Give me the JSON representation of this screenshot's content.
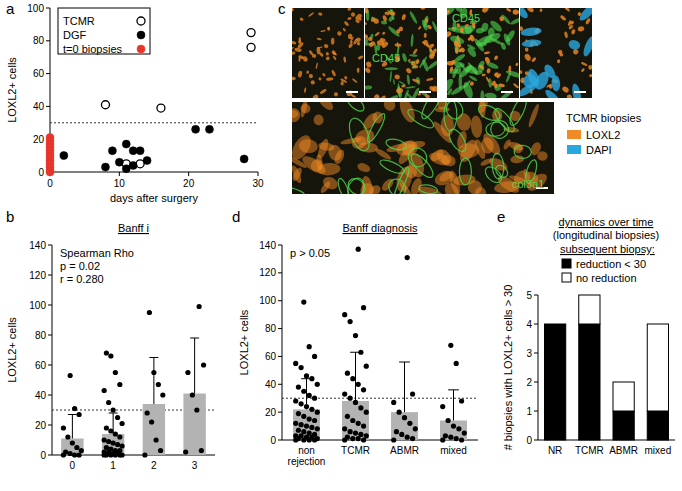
{
  "chart_data": [
    {
      "panel_label": "a",
      "type": "scatter",
      "x_label": "days after surgery",
      "y_label": "LOXL2+ cells",
      "xlim": [
        0,
        30
      ],
      "xticks": [
        0,
        10,
        20,
        30
      ],
      "ylim": [
        0,
        100
      ],
      "yticks": [
        0,
        20,
        40,
        60,
        80,
        100
      ],
      "threshold": 30,
      "legend": "top-left",
      "series": [
        {
          "name": "TCMR",
          "color": "#000000",
          "marker": "open",
          "x": [
            8,
            11,
            13,
            16,
            29,
            29
          ],
          "values": [
            41,
            5,
            5,
            39,
            85,
            76
          ]
        },
        {
          "name": "DGF",
          "color": "#000000",
          "marker": "filled",
          "x": [
            2,
            8,
            9,
            10,
            11,
            11,
            12,
            12,
            13,
            14,
            21,
            23,
            28
          ],
          "values": [
            10,
            3,
            13,
            6,
            17,
            2,
            13,
            4,
            13,
            7,
            26,
            26,
            8
          ]
        },
        {
          "name": "t=0 biopsies",
          "color": "#e8352b",
          "marker": "filled",
          "x": [
            0,
            0,
            0,
            0,
            0,
            0,
            0,
            0,
            0,
            0,
            0,
            0
          ],
          "values": [
            0,
            1,
            3,
            5,
            7,
            9,
            11,
            13,
            15,
            17,
            19,
            21
          ]
        }
      ]
    },
    {
      "panel_label": "b",
      "type": "bar",
      "title": "Banff i",
      "annotations": [
        "Spearman Rho",
        "p = 0.02",
        "r = 0.280"
      ],
      "y_label": "LOXL2+ cells",
      "categories": [
        "0",
        "1",
        "2",
        "3"
      ],
      "values": [
        11,
        14,
        34,
        41
      ],
      "errors": [
        16,
        14,
        31,
        37
      ],
      "points": [
        [
          0,
          0,
          0,
          1,
          2,
          3,
          5,
          8,
          12,
          18,
          27,
          31,
          53
        ],
        [
          0,
          0,
          0,
          0,
          0,
          0,
          1,
          1,
          2,
          2,
          3,
          3,
          4,
          5,
          6,
          7,
          8,
          9,
          10,
          12,
          14,
          16,
          18,
          21,
          25,
          30,
          35,
          43,
          47,
          55,
          66,
          68
        ],
        [
          0,
          3,
          10,
          22,
          28,
          40,
          47,
          55,
          95
        ],
        [
          2,
          3,
          30,
          40,
          55,
          60,
          99
        ]
      ],
      "color": "#b3b3b3",
      "ylim": [
        0,
        140
      ],
      "yticks": [
        0,
        20,
        40,
        60,
        80,
        100,
        120,
        140
      ],
      "threshold": 30
    },
    {
      "panel_label": "d",
      "type": "bar",
      "title": "Banff diagnosis",
      "annotations": [
        "p > 0.05"
      ],
      "y_label": "LOXL2+ cells",
      "categories": [
        "non rejection",
        "TCMR",
        "ABMR",
        "mixed"
      ],
      "values": [
        22,
        28,
        20,
        14
      ],
      "errors": [
        22,
        35,
        36,
        22
      ],
      "points": [
        [
          0,
          0,
          0,
          0,
          1,
          1,
          2,
          2,
          3,
          3,
          4,
          5,
          6,
          7,
          8,
          9,
          10,
          11,
          12,
          14,
          15,
          17,
          19,
          20,
          22,
          24,
          26,
          28,
          30,
          32,
          35,
          38,
          40,
          44,
          46,
          52,
          55,
          60,
          67,
          99
        ],
        [
          0,
          0,
          1,
          1,
          2,
          3,
          4,
          5,
          6,
          8,
          10,
          12,
          14,
          17,
          20,
          23,
          27,
          30,
          33,
          36,
          40,
          44,
          48,
          53,
          63,
          75,
          85,
          90,
          95,
          137
        ],
        [
          0,
          1,
          2,
          4,
          6,
          8,
          12,
          16,
          20,
          27,
          33,
          131
        ],
        [
          0,
          0,
          1,
          2,
          3,
          5,
          8,
          10,
          14,
          24,
          28,
          55,
          68
        ]
      ],
      "color": "#b3b3b3",
      "ylim": [
        0,
        140
      ],
      "yticks": [
        0,
        20,
        40,
        60,
        80,
        100,
        120,
        140
      ],
      "threshold": 30
    },
    {
      "panel_label": "e",
      "type": "bar",
      "stacked": true,
      "title": "dynamics over time",
      "subtitle": "(longitudinal biopsies)",
      "legend_title": "subsequent biopsy:",
      "legend": "top",
      "y_label": "# biopsies with LOXL2+ cells > 30",
      "categories": [
        "NR",
        "TCMR",
        "ABMR",
        "mixed"
      ],
      "series": [
        {
          "name": "reduction < 30",
          "color": "#000000",
          "values": [
            4,
            4,
            1,
            1
          ]
        },
        {
          "name": "no reduction",
          "color": "#ffffff",
          "values": [
            0,
            1,
            1,
            3
          ]
        }
      ],
      "ylim": [
        0,
        5
      ],
      "yticks": [
        0,
        1,
        2,
        3,
        4,
        5
      ]
    }
  ],
  "image_panel": {
    "panel_label": "c",
    "title": "TCMR biopsies",
    "stains": [
      {
        "name": "LOXL2",
        "color": "#f08a24"
      },
      {
        "name": "DAPI",
        "color": "#29a8e0"
      }
    ],
    "image_labels": [
      "CD45",
      "CD45",
      "col3a1"
    ],
    "label_color": "#4fd84f"
  }
}
